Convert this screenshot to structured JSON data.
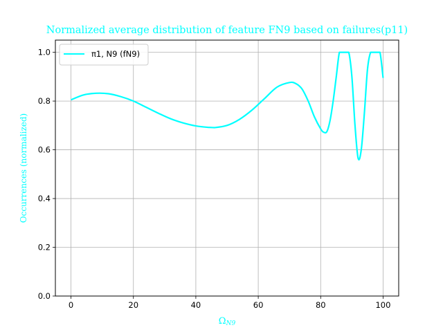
{
  "chart_data": {
    "type": "line",
    "title": "Normalized average distribution of feature FN9 based on failures(p11)",
    "xlabel": "Ω",
    "xlabel_sub": "N9",
    "ylabel": "Occurrences (normalized)",
    "xlim": [
      -5,
      105
    ],
    "ylim": [
      0,
      1.05
    ],
    "x_ticks": [
      0,
      20,
      40,
      60,
      80,
      100
    ],
    "y_ticks": [
      0.0,
      0.2,
      0.4,
      0.6,
      0.8,
      1.0
    ],
    "x_tick_labels": [
      "0",
      "20",
      "40",
      "60",
      "80",
      "100"
    ],
    "y_tick_labels": [
      "0.0",
      "0.2",
      "0.4",
      "0.6",
      "0.8",
      "1.0"
    ],
    "grid": true,
    "legend_position": "top-left",
    "colors": {
      "series": "#00ffff",
      "title": "#00ffff",
      "axis_labels": "#00ffff",
      "grid": "#b0b0b0",
      "axes": "#000000"
    },
    "series": [
      {
        "name": "π1, N9 (fN9)",
        "x": [
          0,
          4,
          8,
          12,
          16,
          20,
          24,
          28,
          32,
          36,
          40,
          44,
          46,
          50,
          54,
          58,
          62,
          66,
          70,
          72,
          74,
          76,
          78,
          80,
          81,
          82,
          83,
          84,
          85,
          86,
          87,
          88,
          89,
          90,
          91,
          92,
          93,
          94,
          95,
          96,
          97,
          98,
          99,
          100
        ],
        "y": [
          0.805,
          0.825,
          0.832,
          0.83,
          0.818,
          0.8,
          0.775,
          0.75,
          0.727,
          0.71,
          0.698,
          0.692,
          0.691,
          0.7,
          0.725,
          0.763,
          0.81,
          0.857,
          0.876,
          0.872,
          0.85,
          0.8,
          0.735,
          0.686,
          0.672,
          0.675,
          0.72,
          0.8,
          0.9,
          1.0,
          1.0,
          1.0,
          1.0,
          0.9,
          0.7,
          0.565,
          0.6,
          0.75,
          0.93,
          1.0,
          1.0,
          1.0,
          1.0,
          0.895
        ]
      }
    ]
  }
}
